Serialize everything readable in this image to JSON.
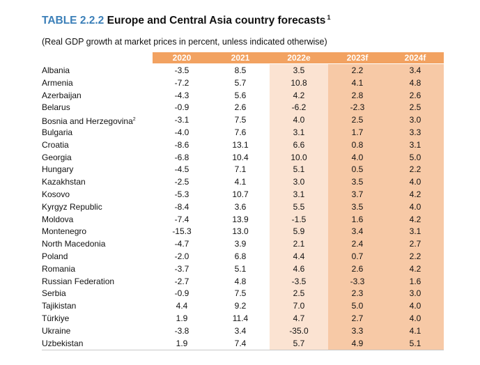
{
  "table": {
    "label": "TABLE 2.2.2",
    "title": "Europe and Central Asia country forecasts",
    "title_sup": "1",
    "subtitle": "(Real GDP growth at market prices in percent, unless indicated otherwise)",
    "columns": [
      "2020",
      "2021",
      "2022e",
      "2023f",
      "2024f"
    ],
    "rows": [
      {
        "country": "Albania",
        "sup": "",
        "values": [
          "-3.5",
          "8.5",
          "3.5",
          "2.2",
          "3.4"
        ]
      },
      {
        "country": "Armenia",
        "sup": "",
        "values": [
          "-7.2",
          "5.7",
          "10.8",
          "4.1",
          "4.8"
        ]
      },
      {
        "country": "Azerbaijan",
        "sup": "",
        "values": [
          "-4.3",
          "5.6",
          "4.2",
          "2.8",
          "2.6"
        ]
      },
      {
        "country": "Belarus",
        "sup": "",
        "values": [
          "-0.9",
          "2.6",
          "-6.2",
          "-2.3",
          "2.5"
        ]
      },
      {
        "country": "Bosnia and Herzegovina",
        "sup": "2",
        "values": [
          "-3.1",
          "7.5",
          "4.0",
          "2.5",
          "3.0"
        ]
      },
      {
        "country": "Bulgaria",
        "sup": "",
        "values": [
          "-4.0",
          "7.6",
          "3.1",
          "1.7",
          "3.3"
        ]
      },
      {
        "country": "Croatia",
        "sup": "",
        "values": [
          "-8.6",
          "13.1",
          "6.6",
          "0.8",
          "3.1"
        ]
      },
      {
        "country": "Georgia",
        "sup": "",
        "values": [
          "-6.8",
          "10.4",
          "10.0",
          "4.0",
          "5.0"
        ]
      },
      {
        "country": "Hungary",
        "sup": "",
        "values": [
          "-4.5",
          "7.1",
          "5.1",
          "0.5",
          "2.2"
        ]
      },
      {
        "country": "Kazakhstan",
        "sup": "",
        "values": [
          "-2.5",
          "4.1",
          "3.0",
          "3.5",
          "4.0"
        ]
      },
      {
        "country": "Kosovo",
        "sup": "",
        "values": [
          "-5.3",
          "10.7",
          "3.1",
          "3.7",
          "4.2"
        ]
      },
      {
        "country": "Kyrgyz Republic",
        "sup": "",
        "values": [
          "-8.4",
          "3.6",
          "5.5",
          "3.5",
          "4.0"
        ]
      },
      {
        "country": "Moldova",
        "sup": "",
        "values": [
          "-7.4",
          "13.9",
          "-1.5",
          "1.6",
          "4.2"
        ]
      },
      {
        "country": "Montenegro",
        "sup": "",
        "values": [
          "-15.3",
          "13.0",
          "5.9",
          "3.4",
          "3.1"
        ]
      },
      {
        "country": "North Macedonia",
        "sup": "",
        "values": [
          "-4.7",
          "3.9",
          "2.1",
          "2.4",
          "2.7"
        ]
      },
      {
        "country": "Poland",
        "sup": "",
        "values": [
          "-2.0",
          "6.8",
          "4.4",
          "0.7",
          "2.2"
        ]
      },
      {
        "country": "Romania",
        "sup": "",
        "values": [
          "-3.7",
          "5.1",
          "4.6",
          "2.6",
          "4.2"
        ]
      },
      {
        "country": "Russian Federation",
        "sup": "",
        "values": [
          "-2.7",
          "4.8",
          "-3.5",
          "-3.3",
          "1.6"
        ]
      },
      {
        "country": "Serbia",
        "sup": "",
        "values": [
          "-0.9",
          "7.5",
          "2.5",
          "2.3",
          "3.0"
        ]
      },
      {
        "country": "Tajikistan",
        "sup": "",
        "values": [
          "4.4",
          "9.2",
          "7.0",
          "5.0",
          "4.0"
        ]
      },
      {
        "country": "Türkiye",
        "sup": "",
        "values": [
          "1.9",
          "11.4",
          "4.7",
          "2.7",
          "4.0"
        ]
      },
      {
        "country": "Ukraine",
        "sup": "",
        "values": [
          "-3.8",
          "3.4",
          "-35.0",
          "3.3",
          "4.1"
        ]
      },
      {
        "country": "Uzbekistan",
        "sup": "",
        "values": [
          "1.9",
          "7.4",
          "5.7",
          "4.9",
          "5.1"
        ]
      }
    ]
  },
  "colors": {
    "label_blue": "#3b7fb8",
    "header_orange": "#f2a261",
    "estimate_shade": "#fbe3d2",
    "forecast_shade": "#f7c9a6"
  }
}
